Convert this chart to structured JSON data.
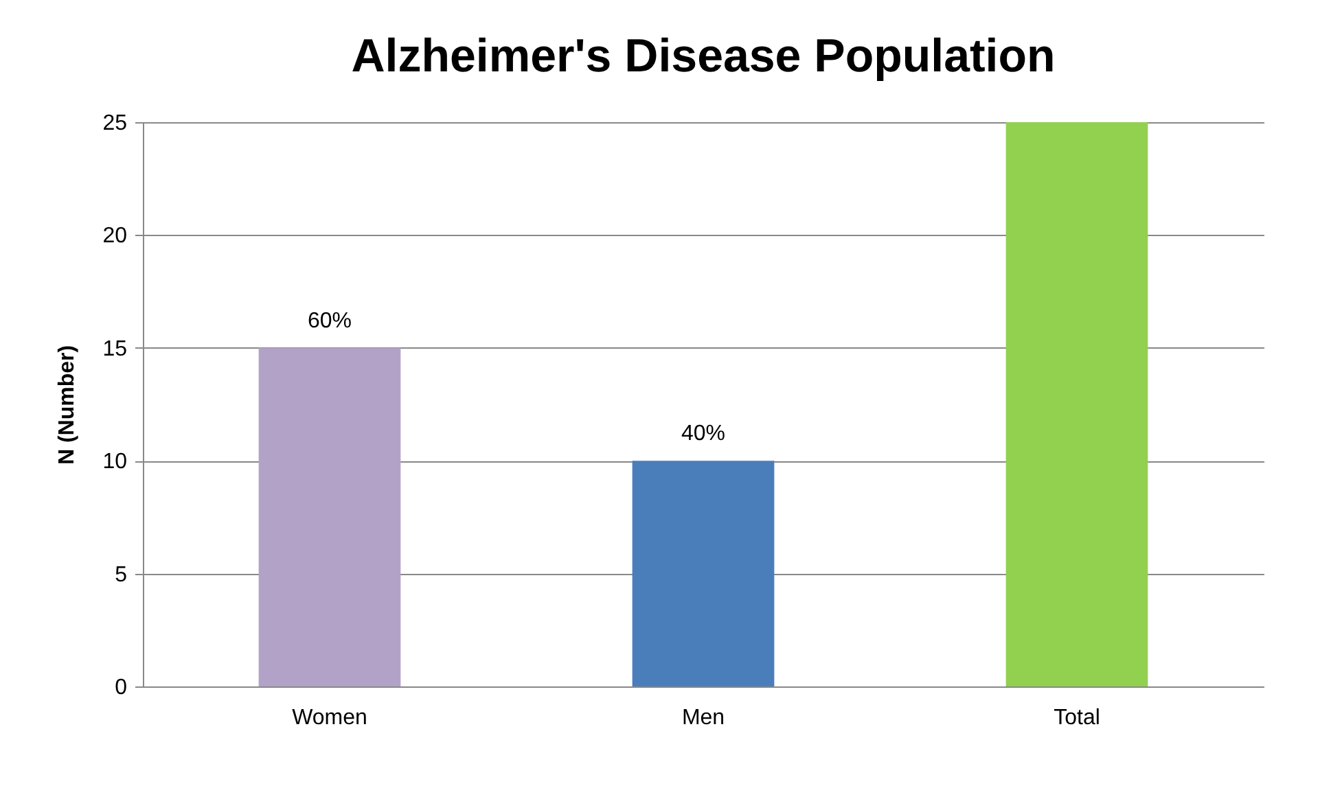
{
  "chart_data": {
    "type": "bar",
    "title": "Alzheimer's Disease Population",
    "ylabel": "N (Number)",
    "categories": [
      "Women",
      "Men",
      "Total"
    ],
    "values": [
      15,
      10,
      25
    ],
    "colors": [
      "#b3a2c7",
      "#4a7ebb",
      "#92d050"
    ],
    "annotations": [
      {
        "text": "60%",
        "x": "Women",
        "y": 15
      },
      {
        "text": "40%",
        "x": "Men",
        "y": 10
      }
    ],
    "ylim": [
      0,
      25
    ],
    "yticks": [
      0,
      5,
      10,
      15,
      20,
      25
    ],
    "grid": "y"
  }
}
